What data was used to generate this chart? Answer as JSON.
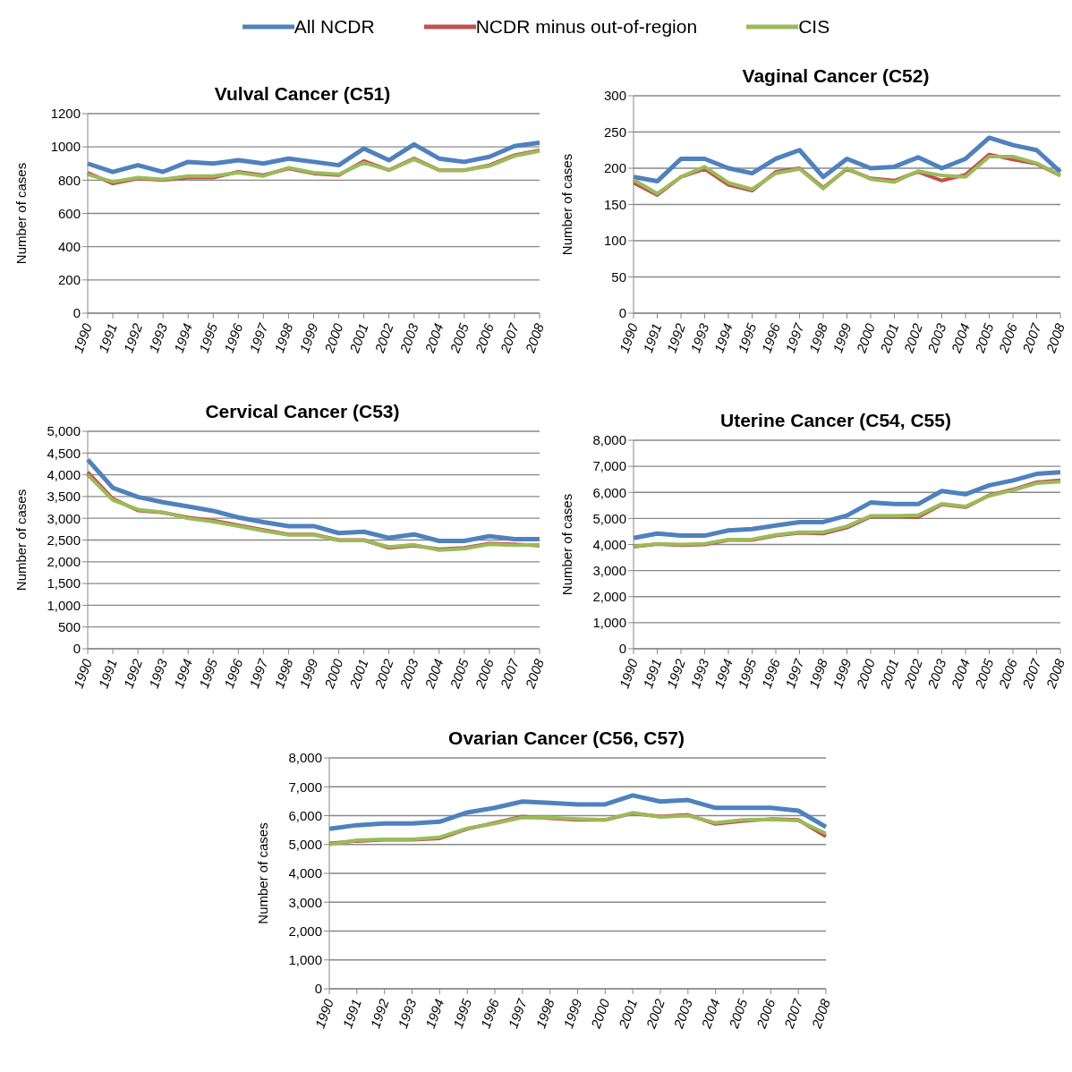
{
  "chart_data": [
    {
      "type": "line",
      "title": "Vulval Cancer (C51)",
      "ylabel": "Number of cases",
      "categories": [
        "1990",
        "1991",
        "1992",
        "1993",
        "1994",
        "1995",
        "1996",
        "1997",
        "1998",
        "1999",
        "2000",
        "2001",
        "2002",
        "2003",
        "2004",
        "2005",
        "2006",
        "2007",
        "2008"
      ],
      "ylim": [
        0,
        1200
      ],
      "yticks": [
        0,
        200,
        400,
        600,
        800,
        1000,
        1200
      ],
      "grid": "y",
      "legend": "top",
      "marker": "none",
      "series": [
        {
          "name": "All NCDR",
          "color": "#4f81bd",
          "values": [
            900,
            850,
            890,
            850,
            910,
            900,
            920,
            900,
            930,
            910,
            890,
            990,
            920,
            1015,
            930,
            910,
            940,
            1005,
            1025
          ]
        },
        {
          "name": "NCDR minus out-of-region",
          "color": "#c0504d",
          "values": [
            845,
            780,
            810,
            800,
            815,
            815,
            850,
            830,
            870,
            840,
            830,
            915,
            860,
            930,
            860,
            860,
            890,
            950,
            980
          ]
        },
        {
          "name": "CIS",
          "color": "#9bbb59",
          "values": [
            835,
            790,
            815,
            805,
            825,
            825,
            845,
            825,
            875,
            845,
            835,
            905,
            860,
            925,
            860,
            860,
            885,
            945,
            975
          ]
        }
      ]
    },
    {
      "type": "line",
      "title": "Vaginal Cancer (C52)",
      "ylabel": "Number of cases",
      "categories": [
        "1990",
        "1991",
        "1992",
        "1993",
        "1994",
        "1995",
        "1996",
        "1997",
        "1998",
        "1999",
        "2000",
        "2001",
        "2002",
        "2003",
        "2004",
        "2005",
        "2006",
        "2007",
        "2008"
      ],
      "ylim": [
        0,
        300
      ],
      "yticks": [
        0,
        50,
        100,
        150,
        200,
        250,
        300
      ],
      "grid": "y",
      "marker": "none",
      "series": [
        {
          "color": "#4f81bd",
          "values": [
            188,
            182,
            213,
            213,
            200,
            193,
            213,
            225,
            188,
            213,
            200,
            202,
            215,
            200,
            213,
            242,
            232,
            225,
            195
          ]
        },
        {
          "color": "#c0504d",
          "values": [
            180,
            163,
            188,
            199,
            177,
            169,
            195,
            200,
            173,
            199,
            186,
            183,
            195,
            183,
            191,
            219,
            212,
            206,
            190
          ]
        },
        {
          "color": "#9bbb59",
          "values": [
            184,
            165,
            188,
            202,
            180,
            171,
            193,
            199,
            172,
            200,
            185,
            181,
            196,
            190,
            188,
            216,
            216,
            207,
            190
          ]
        }
      ]
    },
    {
      "type": "line",
      "title": "Cervical Cancer (C53)",
      "ylabel": "Number of cases",
      "categories": [
        "1990",
        "1991",
        "1992",
        "1993",
        "1994",
        "1995",
        "1996",
        "1997",
        "1998",
        "1999",
        "2000",
        "2001",
        "2002",
        "2003",
        "2004",
        "2005",
        "2006",
        "2007",
        "2008"
      ],
      "ylim": [
        0,
        5000
      ],
      "yticks": [
        0,
        500,
        {
          "value": 1000,
          "label": "1,000"
        },
        {
          "value": 1500,
          "label": "1,500"
        },
        {
          "value": 2000,
          "label": "2,000"
        },
        {
          "value": 2500,
          "label": "2,500"
        },
        {
          "value": 3000,
          "label": "3,000"
        },
        {
          "value": 3500,
          "label": "3,500"
        },
        {
          "value": 4000,
          "label": "4,000"
        },
        {
          "value": 4500,
          "label": "4,500"
        },
        {
          "value": 5000,
          "label": "5,000"
        }
      ],
      "grid": "y",
      "marker": "none",
      "series": [
        {
          "color": "#4f81bd",
          "values": [
            4350,
            3700,
            3490,
            3370,
            3270,
            3170,
            3020,
            2910,
            2820,
            2820,
            2660,
            2690,
            2550,
            2630,
            2480,
            2480,
            2590,
            2520,
            2520
          ]
        },
        {
          "color": "#c0504d",
          "values": [
            4060,
            3450,
            3180,
            3130,
            3020,
            2950,
            2840,
            2730,
            2630,
            2630,
            2500,
            2500,
            2320,
            2370,
            2290,
            2320,
            2420,
            2400,
            2370
          ]
        },
        {
          "color": "#9bbb59",
          "values": [
            4000,
            3420,
            3200,
            3140,
            3000,
            2920,
            2820,
            2710,
            2620,
            2620,
            2490,
            2490,
            2340,
            2390,
            2270,
            2300,
            2400,
            2380,
            2390
          ]
        }
      ]
    },
    {
      "type": "line",
      "title": "Uterine Cancer (C54, C55)",
      "ylabel": "Number of cases",
      "categories": [
        "1990",
        "1991",
        "1992",
        "1993",
        "1994",
        "1995",
        "1996",
        "1997",
        "1998",
        "1999",
        "2000",
        "2001",
        "2002",
        "2003",
        "2004",
        "2005",
        "2006",
        "2007",
        "2008"
      ],
      "ylim": [
        0,
        8000
      ],
      "yticks": [
        0,
        {
          "value": 1000,
          "label": "1,000"
        },
        {
          "value": 2000,
          "label": "2,000"
        },
        {
          "value": 3000,
          "label": "3,000"
        },
        {
          "value": 4000,
          "label": "4,000"
        },
        {
          "value": 5000,
          "label": "5,000"
        },
        {
          "value": 6000,
          "label": "6,000"
        },
        {
          "value": 7000,
          "label": "7,000"
        },
        {
          "value": 8000,
          "label": "8,000"
        }
      ],
      "grid": "y",
      "marker": "none",
      "series": [
        {
          "color": "#4f81bd",
          "values": [
            4250,
            4420,
            4340,
            4340,
            4540,
            4590,
            4730,
            4860,
            4860,
            5110,
            5610,
            5550,
            5550,
            6050,
            5930,
            6270,
            6460,
            6710,
            6770
          ]
        },
        {
          "color": "#c0504d",
          "values": [
            3910,
            4020,
            3970,
            4000,
            4170,
            4170,
            4340,
            4450,
            4420,
            4650,
            5070,
            5070,
            5050,
            5540,
            5430,
            5890,
            6110,
            6390,
            6460
          ]
        },
        {
          "color": "#9bbb59",
          "values": [
            3920,
            4030,
            4000,
            4030,
            4190,
            4200,
            4370,
            4470,
            4470,
            4700,
            5100,
            5100,
            5120,
            5560,
            5460,
            5870,
            6080,
            6350,
            6410
          ]
        }
      ]
    },
    {
      "type": "line",
      "title": "Ovarian Cancer (C56, C57)",
      "ylabel": "Number of cases",
      "categories": [
        "1990",
        "1991",
        "1992",
        "1993",
        "1994",
        "1995",
        "1996",
        "1997",
        "1998",
        "1999",
        "2000",
        "2001",
        "2002",
        "2003",
        "2004",
        "2005",
        "2006",
        "2007",
        "2008"
      ],
      "ylim": [
        0,
        8000
      ],
      "yticks": [
        0,
        {
          "value": 1000,
          "label": "1,000"
        },
        {
          "value": 2000,
          "label": "2,000"
        },
        {
          "value": 3000,
          "label": "3,000"
        },
        {
          "value": 4000,
          "label": "4,000"
        },
        {
          "value": 5000,
          "label": "5,000"
        },
        {
          "value": 6000,
          "label": "6,000"
        },
        {
          "value": 7000,
          "label": "7,000"
        },
        {
          "value": 8000,
          "label": "8,000"
        }
      ],
      "grid": "y",
      "marker": "none",
      "series": [
        {
          "color": "#4f81bd",
          "values": [
            5540,
            5670,
            5730,
            5730,
            5790,
            6110,
            6270,
            6490,
            6440,
            6390,
            6390,
            6700,
            6490,
            6540,
            6270,
            6270,
            6270,
            6170,
            5610
          ]
        },
        {
          "color": "#c0504d",
          "values": [
            5040,
            5120,
            5160,
            5160,
            5210,
            5540,
            5750,
            5970,
            5910,
            5850,
            5850,
            6080,
            5970,
            6030,
            5710,
            5810,
            5880,
            5850,
            5280
          ]
        },
        {
          "color": "#9bbb59",
          "values": [
            5000,
            5150,
            5180,
            5180,
            5250,
            5560,
            5730,
            5940,
            5930,
            5880,
            5850,
            6100,
            5950,
            6000,
            5750,
            5850,
            5870,
            5830,
            5380
          ]
        }
      ]
    }
  ]
}
